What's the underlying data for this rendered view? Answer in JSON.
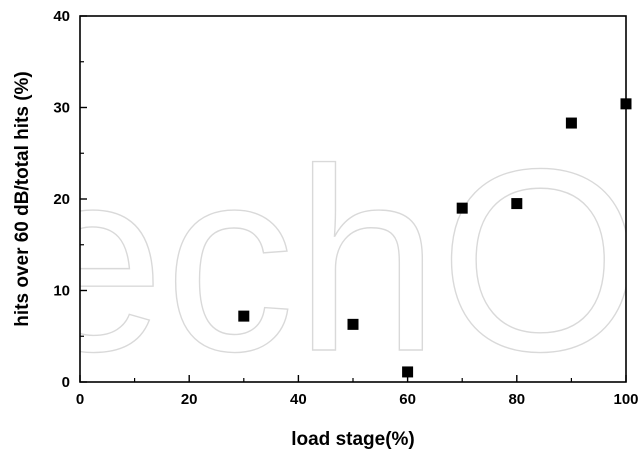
{
  "chart_data": {
    "type": "scatter",
    "xlabel": "load stage(%)",
    "ylabel": "hits over 60 dB/total hits (%)",
    "xlim": [
      0,
      100
    ],
    "ylim": [
      0,
      40
    ],
    "x_ticks": [
      0,
      20,
      40,
      60,
      80,
      100
    ],
    "x_tick_labels": [
      "0",
      "20",
      "40",
      "60",
      "80",
      "100"
    ],
    "y_ticks": [
      0,
      10,
      20,
      30,
      40
    ],
    "y_tick_labels": [
      "0",
      "10",
      "20",
      "30",
      "40"
    ],
    "marker": "square",
    "marker_color": "#000000",
    "grid": false,
    "series": [
      {
        "x": [
          30,
          50,
          60,
          70,
          80,
          90,
          100
        ],
        "y": [
          7.2,
          6.3,
          1.1,
          19.0,
          19.5,
          28.3,
          30.4
        ]
      }
    ]
  },
  "watermark": {
    "text": "echOpen",
    "color": "#d9d9d9"
  }
}
